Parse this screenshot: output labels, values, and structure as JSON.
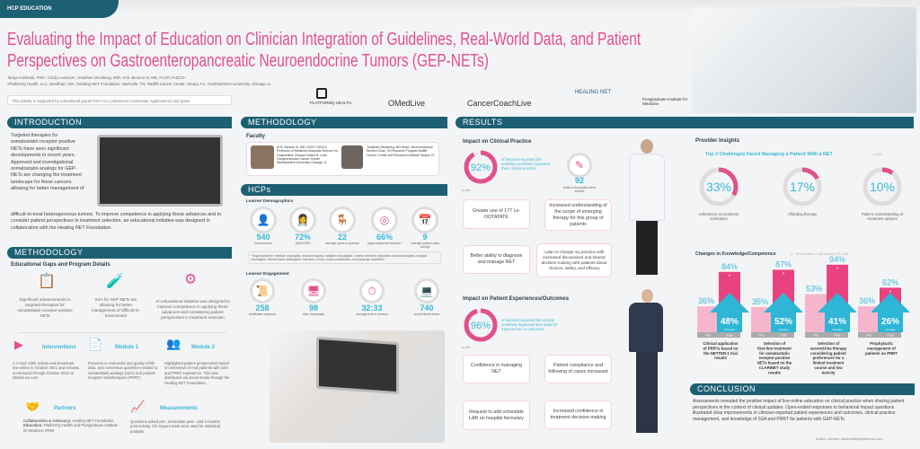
{
  "header": {
    "tag": "HCP EDUCATION",
    "title": "Evaluating the Impact of Education on Clinician Integration of Guidelines, Real-World Data, and Patient Perspectives on Gastroenteropancreatic Neuroendocrine Tumors (GEP-NETs)",
    "authors": "Tariqa Ackbarali, PhD¹, Cindy Lovelace², Jonathan Strosberg, MD³, Al B. Benson III, MD, FACP, FASCO⁴",
    "affiliations": "¹PlatformQ Health, LLC, Needham, MA; ²Healing NET Foundation, Nashville, TN; ³Moffitt Cancer Center, Tampa, FL; ⁴Northwestern University, Chicago, IL",
    "support": "This activity is supported by educational grants from AAA (Advanced Accelerator Applications) and Ipsen.",
    "logos": [
      "PLATFORMQ HEALTH",
      "OMedLive",
      "CancerCoachLive",
      "HEALING NET",
      "Postgraduate Institute for Medicine"
    ]
  },
  "intro": {
    "heading": "INTRODUCTION",
    "text_top": "Targeted therapies for somatostatin receptor-positive NETs have seen significant developments in recent years. Approved and investigational somatostatin analogs for GEP-NETs are changing the treatment landscape for these cancers allowing for better management of",
    "text_bottom": "difficult-to-treat heterogeneous tumors. To improve competence in applying these advances and to consider patient perspectives in treatment selection, an educational initiative was designed in collaboration with the Healing NET Foundation."
  },
  "methodology1": {
    "heading": "METHODOLOGY",
    "subheading": "Educational Gaps and Program Details",
    "gaps": [
      "Significant advancements in targeted therapies for somatostatin receptor-positive NETs",
      "SSA for GEP-NETs are allowing for better management of difficult-to-treat tumors",
      "An educational initiative was designed to improve competence in applying these advances and considering patient perspectives in treatment selection"
    ],
    "interventions": {
      "title": "Interventions",
      "text": "A 1-hour CME activity was broadcast live-online in October 2021 and remains on-demand through October 2022 at OMedLive.com"
    },
    "module1": {
      "title": "Module 1",
      "text": "Focused on real-world and quality-of-life data, and consensus guidelines related to somatostatin analogs (SSA) and peptide receptor radiotherapies (PRRT)."
    },
    "module2": {
      "title": "Module 2",
      "text": "Highlighted patient perspectives based on interviews of real patients with SSA and PRRT experience. This was distributed via social media through the Healing NET Foundation."
    },
    "partners": {
      "title": "Partners",
      "collab_label": "Collaboration & Advocacy:",
      "collab": "Healing NET Foundation",
      "edu_label": "Education:",
      "edu": "PlatformQ Health and Postgraduate Institute for Medicine (PIM)"
    },
    "measurements": {
      "title": "Measurements",
      "text": "Questions asked pre-, immediate post-, and 2-months post-activity. Chi Square tests were used for statistical analysis."
    }
  },
  "methodology2": {
    "heading": "METHODOLOGY",
    "faculty_label": "Faculty",
    "faculty": [
      {
        "text": "Al B. Benson III, MD, FACP, FASCO Professor of Medicine Associate Director for Cooperative Groups Robert H. Lurie Comprehensive Cancer Center Northwestern University Chicago, IL"
      },
      {
        "text": "Jonathan Strosberg, MD Head, Neuroendocrine Section Chair, GI Research Program Moffitt Cancer Center and Research Institute Tampa, FL"
      }
    ]
  },
  "hcps": {
    "heading": "HCPs",
    "demo_label": "Learner Demographics",
    "demographics": [
      {
        "value": "540",
        "label": "total learners"
      },
      {
        "value": "72%",
        "label": "MD/DO/PA"
      },
      {
        "value": "22",
        "label": "average years in practice"
      },
      {
        "value": "66%",
        "label": "target audience learners*"
      },
      {
        "value": "9",
        "label": "average patient visits weekly"
      }
    ],
    "footnote": "*Target Audience: medical oncologists, endocrinologists, radiation oncologists, nuclear medicine physicians and technologists, surgical oncologists, interventional radiologists, internists, nurses, nurse practitioners, and physician assistants",
    "engage_label": "Learner Engagement",
    "engagement": [
      {
        "value": "258",
        "label": "certificates awarded"
      },
      {
        "value": "98",
        "label": "slide downloads"
      },
      {
        "value": "32:33",
        "label": "average time in session"
      },
      {
        "value": "740",
        "label": "social Media views"
      }
    ]
  },
  "results": {
    "heading": "RESULTS",
    "clinical": {
      "title": "Impact on Clinical Practice",
      "pct": 92,
      "pct_label": "92%",
      "desc": "of learners reported the activities positively impacted their clinical practice",
      "n": "n=48",
      "examples_value": "92",
      "examples_label": "write-in examples were shared",
      "quotes": [
        "Greater use of 177 Lu-DOTATATE",
        "Increased understanding of the scope of emerging therapy for this group of patients",
        "Better ability to diagnose and manage NET",
        "I plan to change my practice with increased discussions and shared decision-making with patients about choices, safety, and efficacy"
      ]
    },
    "patient": {
      "title": "Impact on Patient Experiences/Outcomes",
      "pct": 96,
      "pct_label": "96%",
      "desc": "of learners reported the activity positively impacted their patients' experiences or outcomes",
      "n": "n=43",
      "quotes": [
        "Confidence in managing NET",
        "Patient compliance and following of cases increased",
        "Request to add octreotide LAR on hospital formulary",
        "Increased confidence in treatment decision-making"
      ]
    },
    "insights": {
      "title": "Provider Insights",
      "chart_title": "Top 3 Challenges Faced Managing a Patient With a NET",
      "n": "n=269",
      "challenges": [
        {
          "pct": 33,
          "label": "33%",
          "text": "Adherence to treatment schedules"
        },
        {
          "pct": 17,
          "label": "17%",
          "text": "Affording therapy"
        },
        {
          "pct": 10,
          "label": "10%",
          "text": "Patient understanding of treatment options"
        }
      ]
    },
    "knowledge": {
      "title": "Changes in Knowledge/Competence",
      "legend": "n = 397 pre-test; n = 268 post-test; *P <0.05"
    }
  },
  "chart_data": {
    "type": "bar",
    "title": "Changes in Knowledge/Competence",
    "ylim": [
      0,
      100
    ],
    "categories": [
      "Clinical application of PRRTs based on the NETTER-1 trial results",
      "Selection of first-line treatment for somatostatin receptor-positive NETs based on the CLARINET study results",
      "Selection of second-line therapy considering patient preferences for a limited treatment course and low toxicity",
      "Prophylactic management of patients on PRRT"
    ],
    "series": [
      {
        "name": "Pre",
        "values": [
          36,
          35,
          53,
          36
        ]
      },
      {
        "name": "Post",
        "values": [
          84,
          87,
          94,
          62
        ]
      }
    ],
    "increase": [
      48,
      52,
      41,
      26
    ],
    "increase_label": "increase",
    "significance": "*",
    "colors": {
      "pre": "#f5b6cd",
      "post": "#e8437f",
      "increase": "#2fb5d6"
    }
  },
  "conclusion": {
    "heading": "CONCLUSION",
    "text": "Assessments revealed the positive impact of live-online education on clinical practice when sharing patient perspectives in the context of clinical updates. Open-ended responses to behavioral impact questions illustrated clear improvements in clinician-reported patient experiences and outcomes, clinical practice management, and knowledge of SSA and PRRT for patients with GEP-NETs.",
    "contact": "Author contact: tackbarali@platformq.com"
  },
  "colors": {
    "teal": "#1d5f73",
    "pink": "#e0508c",
    "cyan": "#3bb8d4"
  }
}
